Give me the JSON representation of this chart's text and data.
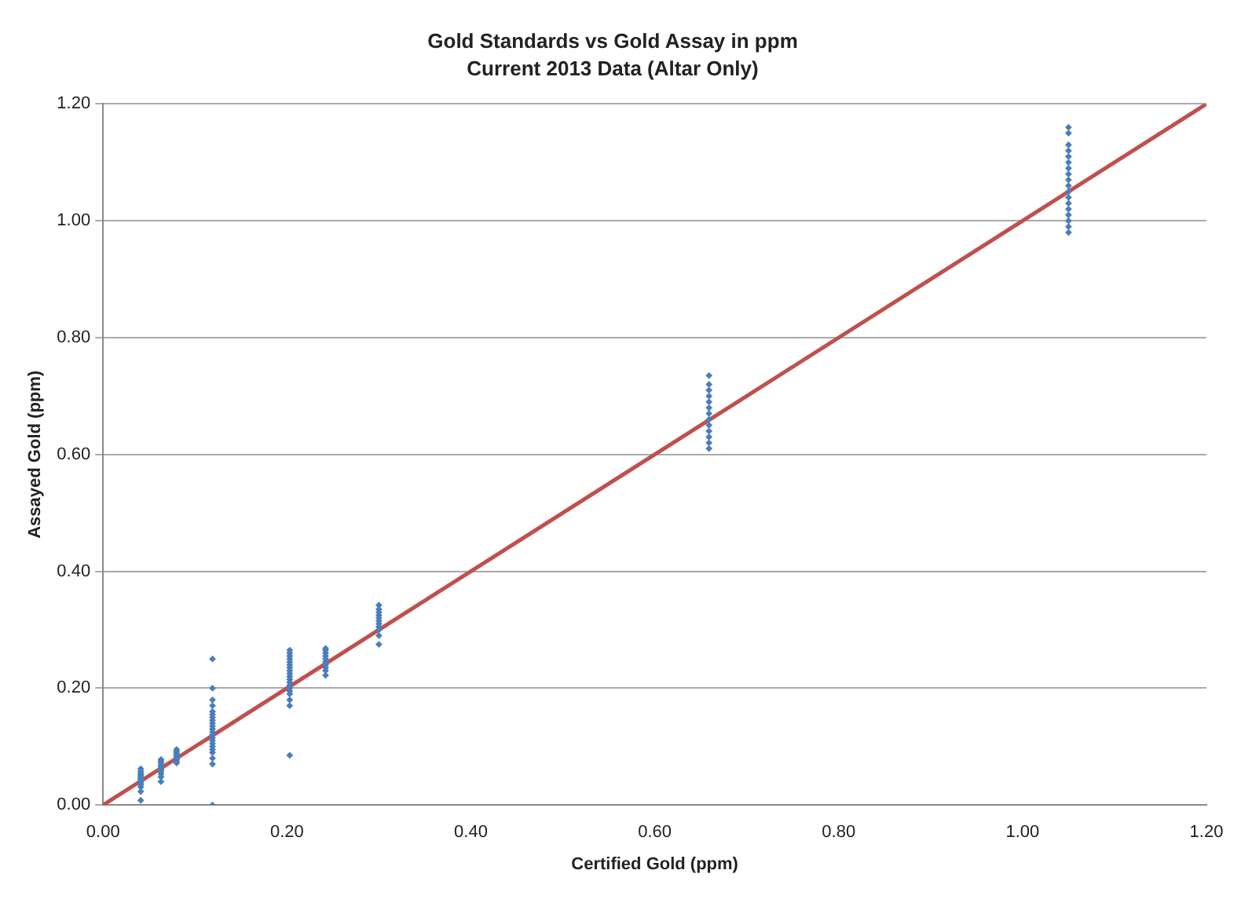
{
  "chart_data": {
    "type": "scatter",
    "title": "Gold Standards vs Gold Assay in ppm",
    "subtitle": "Current 2013 Data (Altar Only)",
    "xlabel": "Certified Gold (ppm)",
    "ylabel": "Assayed Gold (ppm)",
    "xlim": [
      0,
      1.2
    ],
    "xticks": [
      {
        "value": 0,
        "label": "0.00"
      },
      {
        "value": 0.2,
        "label": "0.20"
      },
      {
        "value": 0.4,
        "label": "0.40"
      },
      {
        "value": 0.6,
        "label": "0.60"
      },
      {
        "value": 0.8,
        "label": "0.80"
      },
      {
        "value": 1,
        "label": "1.00"
      },
      {
        "value": 1.2,
        "label": "1.20"
      }
    ],
    "ylim": [
      0,
      1.2
    ],
    "yticks": [
      {
        "value": 0,
        "label": "0.00"
      },
      {
        "value": 0.2,
        "label": "0.20"
      },
      {
        "value": 0.4,
        "label": "0.40"
      },
      {
        "value": 0.6,
        "label": "0.60"
      },
      {
        "value": 0.8,
        "label": "0.80"
      },
      {
        "value": 1,
        "label": "1.00"
      },
      {
        "value": 1.2,
        "label": "1.20"
      }
    ],
    "grid": "y",
    "legend": false,
    "series": [
      {
        "marker": "diamond",
        "color": "#4a7ebb",
        "x": [
          0.041,
          0.041,
          0.041,
          0.041,
          0.041,
          0.041,
          0.041,
          0.041,
          0.041,
          0.041,
          0.041,
          0.041,
          0.041,
          0.041,
          0.063,
          0.063,
          0.063,
          0.063,
          0.063,
          0.063,
          0.063,
          0.063,
          0.063,
          0.063,
          0.063,
          0.08,
          0.08,
          0.08,
          0.08,
          0.08,
          0.08,
          0.08,
          0.08,
          0.08,
          0.08,
          0.119,
          0.119,
          0.119,
          0.119,
          0.119,
          0.119,
          0.119,
          0.119,
          0.119,
          0.119,
          0.119,
          0.119,
          0.119,
          0.119,
          0.119,
          0.119,
          0.119,
          0.119,
          0.119,
          0.119,
          0.119,
          0.119,
          0.203,
          0.203,
          0.203,
          0.203,
          0.203,
          0.203,
          0.203,
          0.203,
          0.203,
          0.203,
          0.203,
          0.203,
          0.203,
          0.203,
          0.203,
          0.203,
          0.203,
          0.203,
          0.203,
          0.242,
          0.242,
          0.242,
          0.242,
          0.242,
          0.242,
          0.242,
          0.242,
          0.242,
          0.242,
          0.3,
          0.3,
          0.3,
          0.3,
          0.3,
          0.3,
          0.3,
          0.3,
          0.3,
          0.3,
          0.3,
          0.659,
          0.659,
          0.659,
          0.659,
          0.659,
          0.659,
          0.659,
          0.659,
          0.659,
          0.659,
          0.659,
          0.659,
          0.659,
          1.05,
          1.05,
          1.05,
          1.05,
          1.05,
          1.05,
          1.05,
          1.05,
          1.05,
          1.05,
          1.05,
          1.05,
          1.05,
          1.05,
          1.05,
          1.05,
          1.05,
          1.05
        ],
        "values": [
          0.062,
          0.058,
          0.055,
          0.052,
          0.05,
          0.047,
          0.045,
          0.042,
          0.04,
          0.037,
          0.035,
          0.031,
          0.023,
          0.008,
          0.078,
          0.075,
          0.072,
          0.068,
          0.065,
          0.062,
          0.06,
          0.057,
          0.053,
          0.048,
          0.04,
          0.095,
          0.092,
          0.09,
          0.087,
          0.085,
          0.082,
          0.08,
          0.078,
          0.075,
          0.072,
          0.25,
          0.2,
          0.18,
          0.17,
          0.16,
          0.155,
          0.15,
          0.145,
          0.14,
          0.135,
          0.13,
          0.125,
          0.12,
          0.115,
          0.11,
          0.105,
          0.1,
          0.095,
          0.09,
          0.08,
          0.07,
          0.0,
          0.265,
          0.26,
          0.255,
          0.25,
          0.245,
          0.24,
          0.235,
          0.23,
          0.225,
          0.22,
          0.215,
          0.21,
          0.205,
          0.2,
          0.195,
          0.19,
          0.18,
          0.17,
          0.085,
          0.268,
          0.265,
          0.26,
          0.255,
          0.25,
          0.245,
          0.24,
          0.235,
          0.23,
          0.222,
          0.342,
          0.335,
          0.33,
          0.325,
          0.32,
          0.315,
          0.31,
          0.305,
          0.3,
          0.29,
          0.275,
          0.735,
          0.72,
          0.71,
          0.7,
          0.69,
          0.68,
          0.67,
          0.66,
          0.65,
          0.64,
          0.63,
          0.62,
          0.61,
          1.16,
          1.15,
          1.13,
          1.12,
          1.11,
          1.1,
          1.09,
          1.08,
          1.07,
          1.06,
          1.05,
          1.04,
          1.03,
          1.02,
          1.01,
          1.0,
          0.99,
          0.98
        ]
      },
      {
        "type": "line",
        "marker": "none",
        "color": "#c0504d",
        "x": [
          0,
          1.2
        ],
        "values": [
          0,
          1.2
        ]
      }
    ]
  }
}
